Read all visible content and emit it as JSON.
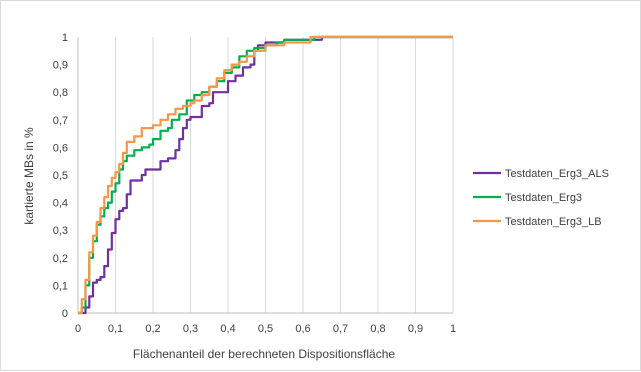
{
  "chart_data": {
    "type": "line",
    "xlabel": "Flächenanteil der berechneten Dispositionsfläche",
    "ylabel": "kartierte MBs in %",
    "xlim": [
      0,
      1
    ],
    "ylim": [
      0,
      1
    ],
    "x_ticks": [
      "0",
      "0,1",
      "0,2",
      "0,3",
      "0,4",
      "0,5",
      "0,6",
      "0,7",
      "0,8",
      "0,9",
      "1"
    ],
    "y_ticks": [
      "0",
      "0,1",
      "0,2",
      "0,3",
      "0,4",
      "0,5",
      "0,6",
      "0,7",
      "0,8",
      "0,9",
      "1"
    ],
    "grid": "vertical",
    "legend_position": "right",
    "series": [
      {
        "name": "Testdaten_Erg3_ALS",
        "color": "#7030a0",
        "points": [
          [
            0,
            0
          ],
          [
            0.01,
            0
          ],
          [
            0.02,
            0.02
          ],
          [
            0.03,
            0.06
          ],
          [
            0.04,
            0.11
          ],
          [
            0.05,
            0.12
          ],
          [
            0.06,
            0.13
          ],
          [
            0.07,
            0.17
          ],
          [
            0.08,
            0.23
          ],
          [
            0.09,
            0.29
          ],
          [
            0.1,
            0.34
          ],
          [
            0.11,
            0.37
          ],
          [
            0.12,
            0.38
          ],
          [
            0.13,
            0.43
          ],
          [
            0.14,
            0.48
          ],
          [
            0.16,
            0.48
          ],
          [
            0.17,
            0.5
          ],
          [
            0.18,
            0.52
          ],
          [
            0.2,
            0.52
          ],
          [
            0.22,
            0.55
          ],
          [
            0.24,
            0.56
          ],
          [
            0.26,
            0.59
          ],
          [
            0.27,
            0.63
          ],
          [
            0.28,
            0.67
          ],
          [
            0.29,
            0.7
          ],
          [
            0.3,
            0.71
          ],
          [
            0.32,
            0.71
          ],
          [
            0.33,
            0.75
          ],
          [
            0.35,
            0.76
          ],
          [
            0.36,
            0.8
          ],
          [
            0.38,
            0.8
          ],
          [
            0.4,
            0.84
          ],
          [
            0.42,
            0.86
          ],
          [
            0.44,
            0.89
          ],
          [
            0.46,
            0.9
          ],
          [
            0.47,
            0.95
          ],
          [
            0.48,
            0.97
          ],
          [
            0.5,
            0.98
          ],
          [
            0.53,
            0.98
          ],
          [
            0.55,
            0.99
          ],
          [
            0.58,
            0.99
          ],
          [
            0.65,
            1
          ],
          [
            1,
            1
          ]
        ]
      },
      {
        "name": "Testdaten_Erg3",
        "color": "#00b050",
        "points": [
          [
            0,
            0
          ],
          [
            0.01,
            0.02
          ],
          [
            0.02,
            0.1
          ],
          [
            0.03,
            0.2
          ],
          [
            0.04,
            0.26
          ],
          [
            0.05,
            0.32
          ],
          [
            0.06,
            0.35
          ],
          [
            0.07,
            0.38
          ],
          [
            0.08,
            0.4
          ],
          [
            0.09,
            0.44
          ],
          [
            0.1,
            0.47
          ],
          [
            0.11,
            0.52
          ],
          [
            0.12,
            0.55
          ],
          [
            0.13,
            0.57
          ],
          [
            0.15,
            0.59
          ],
          [
            0.17,
            0.6
          ],
          [
            0.19,
            0.61
          ],
          [
            0.2,
            0.63
          ],
          [
            0.22,
            0.66
          ],
          [
            0.24,
            0.67
          ],
          [
            0.25,
            0.7
          ],
          [
            0.27,
            0.72
          ],
          [
            0.29,
            0.77
          ],
          [
            0.31,
            0.79
          ],
          [
            0.33,
            0.8
          ],
          [
            0.35,
            0.82
          ],
          [
            0.37,
            0.84
          ],
          [
            0.39,
            0.87
          ],
          [
            0.41,
            0.89
          ],
          [
            0.43,
            0.93
          ],
          [
            0.45,
            0.95
          ],
          [
            0.47,
            0.96
          ],
          [
            0.5,
            0.97
          ],
          [
            0.53,
            0.98
          ],
          [
            0.55,
            0.99
          ],
          [
            0.6,
            0.99
          ],
          [
            0.63,
            1
          ],
          [
            1,
            1
          ]
        ]
      },
      {
        "name": "Testdaten_Erg3_LB",
        "color": "#f79646",
        "points": [
          [
            0,
            0
          ],
          [
            0.01,
            0.05
          ],
          [
            0.02,
            0.12
          ],
          [
            0.03,
            0.22
          ],
          [
            0.04,
            0.28
          ],
          [
            0.05,
            0.33
          ],
          [
            0.06,
            0.38
          ],
          [
            0.07,
            0.42
          ],
          [
            0.08,
            0.46
          ],
          [
            0.09,
            0.49
          ],
          [
            0.1,
            0.51
          ],
          [
            0.11,
            0.54
          ],
          [
            0.12,
            0.58
          ],
          [
            0.13,
            0.62
          ],
          [
            0.15,
            0.64
          ],
          [
            0.17,
            0.67
          ],
          [
            0.19,
            0.67
          ],
          [
            0.2,
            0.68
          ],
          [
            0.22,
            0.7
          ],
          [
            0.24,
            0.72
          ],
          [
            0.26,
            0.74
          ],
          [
            0.28,
            0.75
          ],
          [
            0.3,
            0.76
          ],
          [
            0.31,
            0.77
          ],
          [
            0.33,
            0.79
          ],
          [
            0.35,
            0.82
          ],
          [
            0.37,
            0.85
          ],
          [
            0.39,
            0.88
          ],
          [
            0.41,
            0.9
          ],
          [
            0.43,
            0.91
          ],
          [
            0.45,
            0.93
          ],
          [
            0.47,
            0.95
          ],
          [
            0.5,
            0.97
          ],
          [
            0.52,
            0.97
          ],
          [
            0.55,
            0.98
          ],
          [
            0.62,
            1
          ],
          [
            1,
            1
          ]
        ]
      }
    ]
  }
}
